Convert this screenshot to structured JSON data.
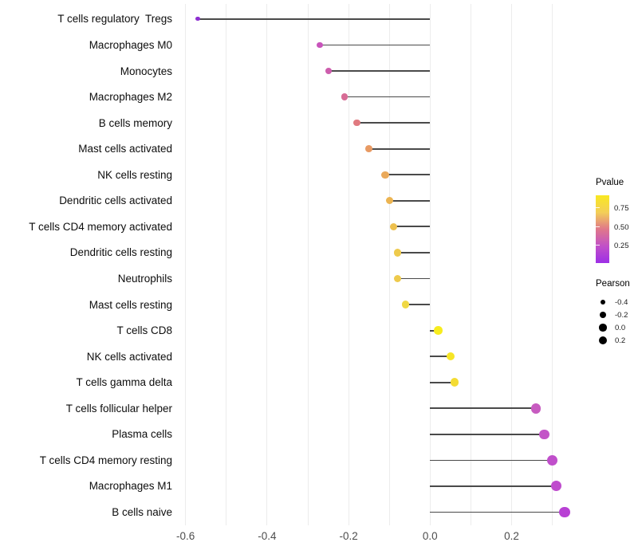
{
  "chart_data": {
    "type": "scatter",
    "variant": "lollipop",
    "title": "",
    "xlabel": "",
    "ylabel": "",
    "xlim": [
      -0.62,
      0.38
    ],
    "grid": "vertical-only",
    "grid_values": [
      -0.6,
      -0.5,
      -0.4,
      -0.3,
      -0.2,
      -0.1,
      0.0,
      0.1,
      0.2,
      0.3
    ],
    "x_tick_values": [
      -0.6,
      -0.4,
      -0.2,
      0.0,
      0.2
    ],
    "x_tick_labels": [
      "-0.6",
      "-0.4",
      "-0.2",
      "0.0",
      "0.2"
    ],
    "baseline": 0.0,
    "categories": [
      "T cells regulatory  Tregs",
      "Macrophages M0",
      "Monocytes",
      "Macrophages M2",
      "B cells memory",
      "Mast cells activated",
      "NK cells resting",
      "Dendritic cells activated",
      "T cells CD4 memory activated",
      "Dendritic cells resting",
      "Neutrophils",
      "Mast cells resting",
      "T cells CD8",
      "NK cells activated",
      "T cells gamma delta",
      "T cells follicular helper",
      "Plasma cells",
      "T cells CD4 memory resting",
      "Macrophages M1",
      "B cells naive"
    ],
    "points": [
      {
        "label": "T cells regulatory  Tregs",
        "pearson": -0.57,
        "color": "#8e2fd1"
      },
      {
        "label": "Macrophages M0",
        "pearson": -0.27,
        "color": "#c854bb"
      },
      {
        "label": "Monocytes",
        "pearson": -0.25,
        "color": "#cd5dad"
      },
      {
        "label": "Macrophages M2",
        "pearson": -0.21,
        "color": "#d76b95"
      },
      {
        "label": "B cells memory",
        "pearson": -0.18,
        "color": "#e07a80"
      },
      {
        "label": "Mast cells activated",
        "pearson": -0.15,
        "color": "#e89a63"
      },
      {
        "label": "NK cells resting",
        "pearson": -0.11,
        "color": "#eaa95a"
      },
      {
        "label": "Dendritic cells activated",
        "pearson": -0.1,
        "color": "#ecb451"
      },
      {
        "label": "T cells CD4 memory activated",
        "pearson": -0.09,
        "color": "#edc04e"
      },
      {
        "label": "Dendritic cells resting",
        "pearson": -0.08,
        "color": "#eeca4c"
      },
      {
        "label": "Neutrophils",
        "pearson": -0.08,
        "color": "#eeca4c"
      },
      {
        "label": "Mast cells resting",
        "pearson": -0.06,
        "color": "#f0d844"
      },
      {
        "label": "T cells CD8",
        "pearson": 0.02,
        "color": "#f7ec1e"
      },
      {
        "label": "NK cells activated",
        "pearson": 0.05,
        "color": "#f6e526"
      },
      {
        "label": "T cells gamma delta",
        "pearson": 0.06,
        "color": "#f4dc33"
      },
      {
        "label": "T cells follicular helper",
        "pearson": 0.26,
        "color": "#c75bc0"
      },
      {
        "label": "Plasma cells",
        "pearson": 0.28,
        "color": "#c355c7"
      },
      {
        "label": "T cells CD4 memory resting",
        "pearson": 0.3,
        "color": "#c04fcb"
      },
      {
        "label": "Macrophages M1",
        "pearson": 0.31,
        "color": "#bf4ccd"
      },
      {
        "label": "B cells naive",
        "pearson": 0.33,
        "color": "#b841d4"
      }
    ],
    "legend_pvalue": {
      "title": "Pvalue",
      "tick_labels": [
        "0.75",
        "0.50",
        "0.25"
      ],
      "gradient_top_to_bottom": [
        "#f9e821",
        "#f3cf57",
        "#e0788a",
        "#c150c8",
        "#9d2fe6"
      ]
    },
    "legend_pearson": {
      "title": "Pearson",
      "entries": [
        "-0.4",
        "-0.2",
        "0.0",
        "0.2"
      ],
      "values": [
        -0.4,
        -0.2,
        0.0,
        0.2
      ],
      "dot_color": "#000000"
    },
    "colors": {
      "stem": "#4a4a4a",
      "grid": "#ececec",
      "axis_text": "#4d4d4d",
      "label_text": "#0d0d0d",
      "background": "#ffffff"
    }
  }
}
